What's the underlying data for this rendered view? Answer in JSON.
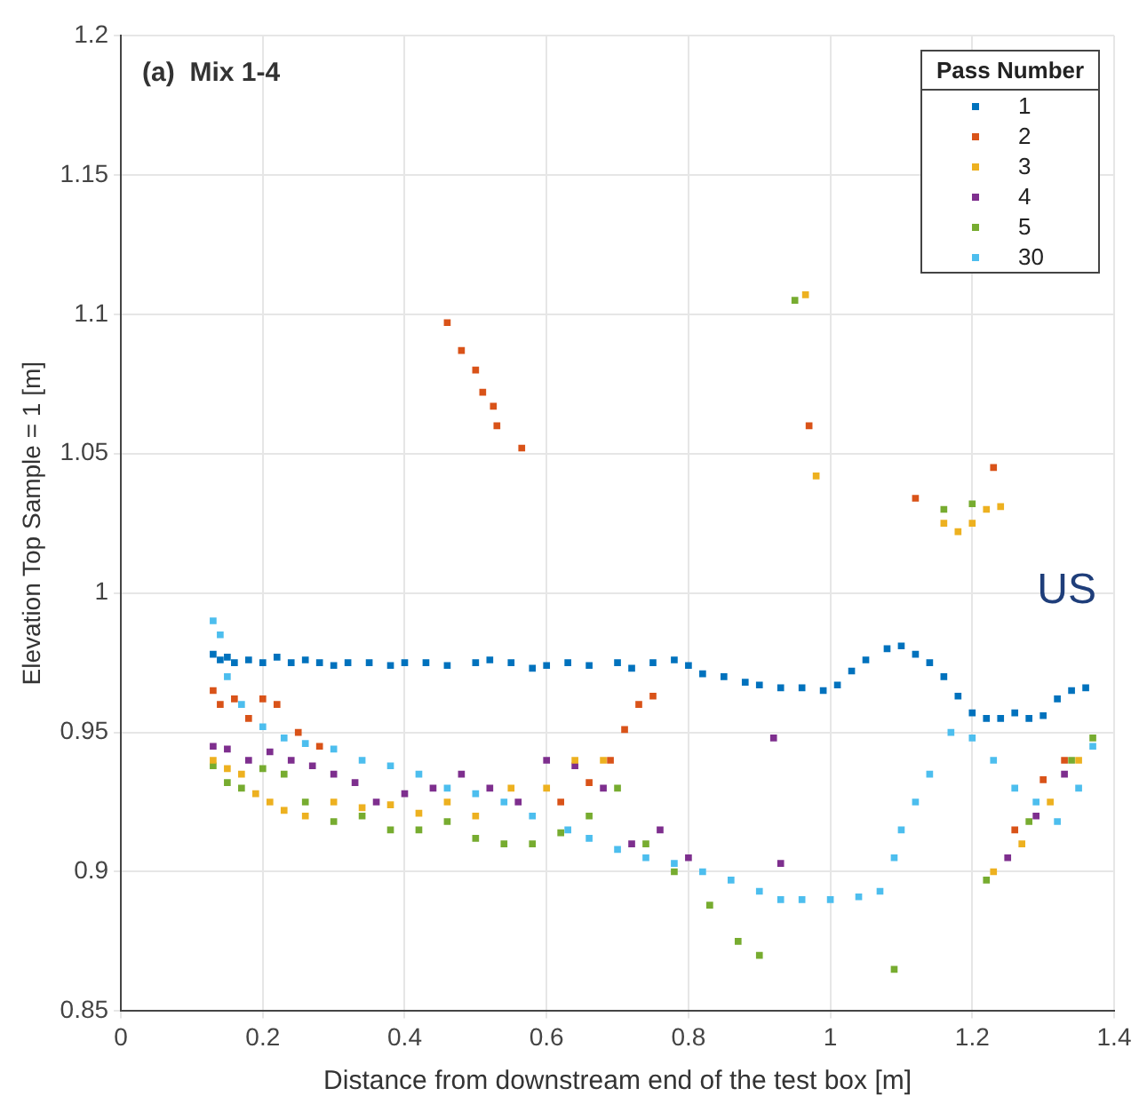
{
  "chart_data": {
    "type": "scatter",
    "xlabel": "Distance from downstream end of the test box [m]",
    "ylabel": "Elevation Top Sample = 1 [m]",
    "legend_title": "Pass Number",
    "annotations": [
      "(a)  Mix 1-4",
      "US"
    ],
    "xlim": [
      0,
      1.4
    ],
    "xticks": [
      0,
      0.2,
      0.4,
      0.6,
      0.8,
      1,
      1.2,
      1.4
    ],
    "ylim": [
      0.85,
      1.2
    ],
    "yticks": [
      0.85,
      0.9,
      0.95,
      1,
      1.05,
      1.1,
      1.15,
      1.2
    ],
    "grid": true,
    "legend": "top right",
    "marker": "square",
    "series": [
      {
        "name": "1",
        "color": "#0072bd",
        "x": [
          0.13,
          0.14,
          0.15,
          0.16,
          0.18,
          0.2,
          0.22,
          0.24,
          0.26,
          0.28,
          0.3,
          0.32,
          0.35,
          0.38,
          0.4,
          0.43,
          0.46,
          0.5,
          0.52,
          0.55,
          0.58,
          0.6,
          0.63,
          0.66,
          0.7,
          0.72,
          0.75,
          0.78,
          0.8,
          0.82,
          0.85,
          0.88,
          0.9,
          0.93,
          0.96,
          0.99,
          1.01,
          1.03,
          1.05,
          1.08,
          1.1,
          1.12,
          1.14,
          1.16,
          1.18,
          1.2,
          1.22,
          1.24,
          1.26,
          1.28,
          1.3,
          1.32,
          1.34,
          1.36
        ],
        "values": [
          0.978,
          0.976,
          0.977,
          0.975,
          0.976,
          0.975,
          0.977,
          0.975,
          0.976,
          0.975,
          0.974,
          0.975,
          0.975,
          0.974,
          0.975,
          0.975,
          0.974,
          0.975,
          0.976,
          0.975,
          0.973,
          0.974,
          0.975,
          0.974,
          0.975,
          0.973,
          0.975,
          0.976,
          0.974,
          0.971,
          0.97,
          0.968,
          0.967,
          0.966,
          0.966,
          0.965,
          0.967,
          0.972,
          0.976,
          0.98,
          0.981,
          0.978,
          0.975,
          0.97,
          0.963,
          0.957,
          0.955,
          0.955,
          0.957,
          0.955,
          0.956,
          0.962,
          0.965,
          0.966
        ]
      },
      {
        "name": "2",
        "color": "#d95319",
        "x": [
          0.13,
          0.14,
          0.16,
          0.18,
          0.2,
          0.22,
          0.25,
          0.28,
          0.46,
          0.48,
          0.5,
          0.51,
          0.525,
          0.53,
          0.565,
          0.62,
          0.66,
          0.69,
          0.71,
          0.73,
          0.75,
          0.97,
          1.12,
          1.23,
          1.26,
          1.3,
          1.33
        ],
        "values": [
          0.965,
          0.96,
          0.962,
          0.955,
          0.962,
          0.96,
          0.95,
          0.945,
          1.097,
          1.087,
          1.08,
          1.072,
          1.067,
          1.06,
          1.052,
          0.925,
          0.932,
          0.94,
          0.951,
          0.96,
          0.963,
          1.06,
          1.034,
          1.045,
          0.915,
          0.933,
          0.94
        ]
      },
      {
        "name": "3",
        "color": "#edb120",
        "x": [
          0.13,
          0.15,
          0.17,
          0.19,
          0.21,
          0.23,
          0.26,
          0.3,
          0.34,
          0.38,
          0.42,
          0.46,
          0.5,
          0.55,
          0.6,
          0.64,
          0.68,
          0.965,
          0.98,
          1.16,
          1.18,
          1.2,
          1.22,
          1.24,
          1.23,
          1.27,
          1.31,
          1.35
        ],
        "values": [
          0.94,
          0.937,
          0.935,
          0.928,
          0.925,
          0.922,
          0.92,
          0.925,
          0.923,
          0.924,
          0.921,
          0.925,
          0.92,
          0.93,
          0.93,
          0.94,
          0.94,
          1.107,
          1.042,
          1.025,
          1.022,
          1.025,
          1.03,
          1.031,
          0.9,
          0.91,
          0.925,
          0.94
        ]
      },
      {
        "name": "4",
        "color": "#7e2f8e",
        "x": [
          0.13,
          0.15,
          0.18,
          0.21,
          0.24,
          0.27,
          0.3,
          0.33,
          0.36,
          0.4,
          0.44,
          0.48,
          0.52,
          0.56,
          0.6,
          0.64,
          0.68,
          0.72,
          0.76,
          0.8,
          0.92,
          0.93,
          1.25,
          1.29,
          1.33
        ],
        "values": [
          0.945,
          0.944,
          0.94,
          0.943,
          0.94,
          0.938,
          0.935,
          0.932,
          0.925,
          0.928,
          0.93,
          0.935,
          0.93,
          0.925,
          0.94,
          0.938,
          0.93,
          0.91,
          0.915,
          0.905,
          0.948,
          0.903,
          0.905,
          0.92,
          0.935
        ]
      },
      {
        "name": "5",
        "color": "#77ac30",
        "x": [
          0.13,
          0.15,
          0.17,
          0.2,
          0.23,
          0.26,
          0.3,
          0.34,
          0.38,
          0.42,
          0.46,
          0.5,
          0.54,
          0.58,
          0.62,
          0.66,
          0.7,
          0.74,
          0.78,
          0.83,
          0.87,
          0.9,
          0.95,
          1.09,
          1.16,
          1.2,
          1.22,
          1.28,
          1.34,
          1.37
        ],
        "values": [
          0.938,
          0.932,
          0.93,
          0.937,
          0.935,
          0.925,
          0.918,
          0.92,
          0.915,
          0.915,
          0.918,
          0.912,
          0.91,
          0.91,
          0.914,
          0.92,
          0.93,
          0.91,
          0.9,
          0.888,
          0.875,
          0.87,
          1.105,
          0.865,
          1.03,
          1.032,
          0.897,
          0.918,
          0.94,
          0.948
        ]
      },
      {
        "name": "30",
        "color": "#4dbeee",
        "x": [
          0.13,
          0.14,
          0.15,
          0.17,
          0.2,
          0.23,
          0.26,
          0.3,
          0.34,
          0.38,
          0.42,
          0.46,
          0.5,
          0.54,
          0.58,
          0.63,
          0.66,
          0.7,
          0.74,
          0.78,
          0.82,
          0.86,
          0.9,
          0.93,
          0.96,
          1.0,
          1.04,
          1.07,
          1.09,
          1.1,
          1.12,
          1.14,
          1.17,
          1.2,
          1.23,
          1.26,
          1.29,
          1.32,
          1.35,
          1.37
        ],
        "values": [
          0.99,
          0.985,
          0.97,
          0.96,
          0.952,
          0.948,
          0.946,
          0.944,
          0.94,
          0.938,
          0.935,
          0.93,
          0.928,
          0.925,
          0.92,
          0.915,
          0.912,
          0.908,
          0.905,
          0.903,
          0.9,
          0.897,
          0.893,
          0.89,
          0.89,
          0.89,
          0.891,
          0.893,
          0.905,
          0.915,
          0.925,
          0.935,
          0.95,
          0.948,
          0.94,
          0.93,
          0.925,
          0.918,
          0.93,
          0.945
        ]
      }
    ]
  }
}
